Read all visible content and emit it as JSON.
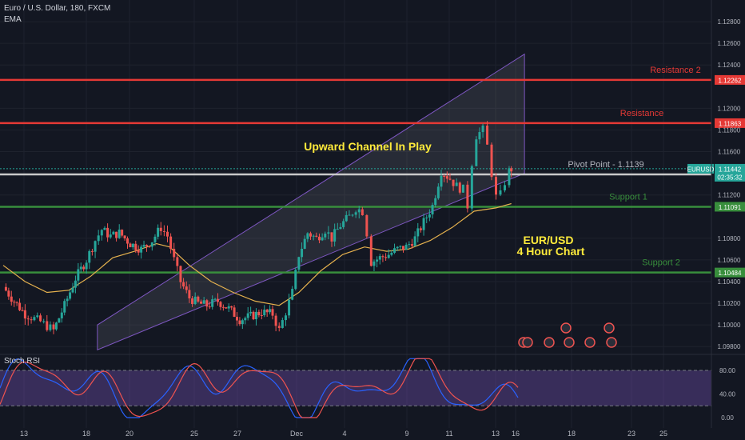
{
  "header": {
    "title": "Euro / U.S. Dollar, 180, FXCM",
    "indicator": "EMA"
  },
  "colors": {
    "background": "#131722",
    "grid": "#1e222d",
    "axis_text": "#b2b5be",
    "bull": "#26a69a",
    "bear": "#ef5350",
    "ema": "#e6b24e",
    "resistance": "#e53935",
    "support": "#388e3c",
    "pivot": "#c9c9c9",
    "channel_border": "#7e57c2",
    "channel_fill": "rgba(149,152,161,0.16)",
    "rsi_band": "rgba(126,87,194,0.35)",
    "rsi_k": "#2962ff",
    "rsi_d": "#ef5350",
    "title_text": "#ffeb3b",
    "price_badge": "#26a69a"
  },
  "chart_data": {
    "type": "candlestick",
    "symbol": "EURUSD",
    "price_axis": {
      "range": [
        1.0975,
        1.13
      ],
      "ticks": [
        "1.12800",
        "1.12600",
        "1.12400",
        "1.12000",
        "1.11800",
        "1.11600",
        "1.11200",
        "1.10800",
        "1.10600",
        "1.10400",
        "1.10200",
        "1.10000",
        "1.09800"
      ]
    },
    "time_axis": {
      "ticks": [
        "13",
        "18",
        "20",
        "25",
        "27",
        "Dec",
        "4",
        "9",
        "11",
        "13",
        "16",
        "18",
        "23",
        "25"
      ]
    },
    "levels": [
      {
        "name": "resistance-2",
        "label": "Resistance 2",
        "price": 1.12262,
        "badge": "1.12262",
        "kind": "resistance"
      },
      {
        "name": "resistance-1",
        "label": "Resistance",
        "price": 1.11863,
        "badge": "1.11863",
        "kind": "resistance"
      },
      {
        "name": "pivot",
        "label": "Pivot Point - 1.1139",
        "price": 1.1139,
        "badge": "1.11390",
        "kind": "pivot"
      },
      {
        "name": "support-1",
        "label": "Support 1",
        "price": 1.11091,
        "badge": "1.11091",
        "kind": "support"
      },
      {
        "name": "support-2",
        "label": "Support 2",
        "price": 1.10484,
        "badge": "1.10484",
        "kind": "support"
      }
    ],
    "current_price": {
      "symbol": "EURUSD",
      "value": "1.11442",
      "countdown": "02:35:32",
      "price": 1.11442
    },
    "channel": {
      "lower": [
        {
          "day": 15.3,
          "price": 1.0977
        },
        {
          "day": 34.8,
          "price": 1.114
        }
      ],
      "upper": [
        {
          "day": 15.3,
          "price": 1.1
        },
        {
          "day": 34.8,
          "price": 1.125
        }
      ]
    },
    "annotations": {
      "channel_title": "Upward Channel In Play",
      "chart_title_line1": "EUR/USD",
      "chart_title_line2": "4 Hour Chart"
    },
    "path": [
      [
        11.0,
        1.1035
      ],
      [
        11.5,
        1.1022
      ],
      [
        12.0,
        1.101
      ],
      [
        12.7,
        1.1003
      ],
      [
        13.3,
        1.0995
      ],
      [
        13.8,
        1.1018
      ],
      [
        14.3,
        1.1043
      ],
      [
        14.8,
        1.106
      ],
      [
        15.2,
        1.1078
      ],
      [
        15.5,
        1.1088
      ],
      [
        15.9,
        1.1082
      ],
      [
        16.3,
        1.1085
      ],
      [
        16.8,
        1.1075
      ],
      [
        17.3,
        1.107
      ],
      [
        17.8,
        1.1078
      ],
      [
        18.2,
        1.109
      ],
      [
        18.5,
        1.1082
      ],
      [
        18.8,
        1.106
      ],
      [
        19.1,
        1.104
      ],
      [
        19.5,
        1.1025
      ],
      [
        19.9,
        1.102
      ],
      [
        20.3,
        1.1018
      ],
      [
        20.8,
        1.1022
      ],
      [
        21.3,
        1.1015
      ],
      [
        21.8,
        1.1005
      ],
      [
        22.3,
        1.1008
      ],
      [
        22.8,
        1.1012
      ],
      [
        23.3,
        1.101
      ],
      [
        23.6,
        1.0995
      ],
      [
        23.9,
        1.1012
      ],
      [
        24.2,
        1.103
      ],
      [
        24.5,
        1.1065
      ],
      [
        24.9,
        1.1085
      ],
      [
        25.3,
        1.108
      ],
      [
        25.7,
        1.1088
      ],
      [
        26.0,
        1.108
      ],
      [
        26.4,
        1.1092
      ],
      [
        26.8,
        1.11
      ],
      [
        27.1,
        1.1108
      ],
      [
        27.4,
        1.1105
      ],
      [
        27.6,
        1.1085
      ],
      [
        27.8,
        1.1058
      ],
      [
        28.2,
        1.1062
      ],
      [
        28.6,
        1.1065
      ],
      [
        29.0,
        1.107
      ],
      [
        29.4,
        1.1072
      ],
      [
        29.8,
        1.108
      ],
      [
        30.2,
        1.1095
      ],
      [
        30.6,
        1.111
      ],
      [
        31.0,
        1.1142
      ],
      [
        31.4,
        1.1135
      ],
      [
        31.7,
        1.1128
      ],
      [
        32.0,
        1.1125
      ],
      [
        32.2,
        1.111
      ],
      [
        32.4,
        1.115
      ],
      [
        32.6,
        1.1175
      ],
      [
        32.9,
        1.118
      ],
      [
        33.1,
        1.1165
      ],
      [
        33.3,
        1.114
      ],
      [
        33.5,
        1.1118
      ],
      [
        33.7,
        1.112
      ],
      [
        33.9,
        1.1132
      ],
      [
        34.1,
        1.1142
      ],
      [
        34.2,
        1.1144
      ]
    ],
    "ema": [
      [
        11.0,
        1.1055
      ],
      [
        12.0,
        1.104
      ],
      [
        13.0,
        1.103
      ],
      [
        14.0,
        1.1032
      ],
      [
        15.0,
        1.1045
      ],
      [
        16.0,
        1.1062
      ],
      [
        17.0,
        1.1068
      ],
      [
        18.0,
        1.1075
      ],
      [
        18.6,
        1.1072
      ],
      [
        19.5,
        1.1055
      ],
      [
        20.5,
        1.104
      ],
      [
        21.5,
        1.103
      ],
      [
        22.5,
        1.1022
      ],
      [
        23.6,
        1.1018
      ],
      [
        24.5,
        1.103
      ],
      [
        25.5,
        1.105
      ],
      [
        26.5,
        1.1065
      ],
      [
        27.5,
        1.1072
      ],
      [
        28.5,
        1.1068
      ],
      [
        29.5,
        1.107
      ],
      [
        30.5,
        1.1078
      ],
      [
        31.5,
        1.109
      ],
      [
        32.5,
        1.1105
      ],
      [
        33.5,
        1.1108
      ],
      [
        34.2,
        1.1112
      ]
    ],
    "rsi": {
      "title": "Stoch RSI",
      "ticks": [
        "80.00",
        "40.00",
        "0.00"
      ],
      "band": [
        20,
        80
      ]
    }
  }
}
